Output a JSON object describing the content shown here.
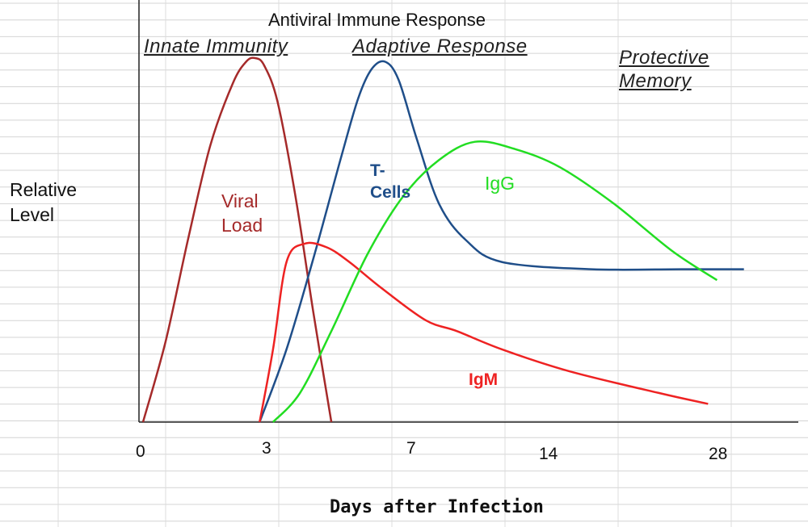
{
  "chart_data": {
    "type": "line",
    "title": "Antiviral Immune Response",
    "xlabel": "Days after Infection",
    "ylabel": "Relative Level",
    "x_ticks": [
      "0",
      "3",
      "7",
      "14",
      "28"
    ],
    "grid": true,
    "phases": [
      "Innate Immunity",
      "Adaptive Response",
      "Protective Memory"
    ],
    "series": [
      {
        "name": "Viral Load",
        "label_lines": [
          "Viral",
          "Load"
        ],
        "color": "#a52a2a",
        "points": [
          [
            0,
            0
          ],
          [
            0.5,
            0.22
          ],
          [
            1.0,
            0.5
          ],
          [
            1.5,
            0.76
          ],
          [
            2.0,
            0.93
          ],
          [
            2.3,
            0.99
          ],
          [
            2.5,
            1.0
          ],
          [
            2.7,
            0.98
          ],
          [
            3.0,
            0.88
          ],
          [
            3.4,
            0.62
          ],
          [
            3.8,
            0.3
          ],
          [
            4.2,
            0.0
          ]
        ]
      },
      {
        "name": "T-Cells",
        "label_lines": [
          "T-",
          "Cells"
        ],
        "color": "#1f4e89",
        "points": [
          [
            2.6,
            0.0
          ],
          [
            3.2,
            0.2
          ],
          [
            3.8,
            0.45
          ],
          [
            4.4,
            0.72
          ],
          [
            4.8,
            0.89
          ],
          [
            5.1,
            0.97
          ],
          [
            5.4,
            0.99
          ],
          [
            5.7,
            0.94
          ],
          [
            6.1,
            0.78
          ],
          [
            6.6,
            0.6
          ],
          [
            7.2,
            0.5
          ],
          [
            8.0,
            0.44
          ],
          [
            10.0,
            0.42
          ],
          [
            12.0,
            0.42
          ],
          [
            13.4,
            0.42
          ]
        ]
      },
      {
        "name": "IgM",
        "label_lines": [
          "IgM"
        ],
        "color": "#ee2222",
        "points": [
          [
            2.6,
            0.0
          ],
          [
            2.9,
            0.2
          ],
          [
            3.2,
            0.44
          ],
          [
            3.6,
            0.49
          ],
          [
            4.1,
            0.48
          ],
          [
            4.6,
            0.44
          ],
          [
            5.3,
            0.37
          ],
          [
            6.3,
            0.28
          ],
          [
            7.0,
            0.25
          ],
          [
            8.0,
            0.2
          ],
          [
            9.5,
            0.14
          ],
          [
            11.5,
            0.08
          ],
          [
            12.6,
            0.05
          ]
        ]
      },
      {
        "name": "IgG",
        "label_lines": [
          "IgG"
        ],
        "color": "#22dd22",
        "points": [
          [
            2.9,
            0.0
          ],
          [
            3.5,
            0.08
          ],
          [
            4.2,
            0.25
          ],
          [
            5.0,
            0.46
          ],
          [
            5.8,
            0.62
          ],
          [
            6.6,
            0.72
          ],
          [
            7.4,
            0.77
          ],
          [
            8.3,
            0.75
          ],
          [
            9.3,
            0.7
          ],
          [
            10.5,
            0.6
          ],
          [
            11.8,
            0.47
          ],
          [
            12.8,
            0.39
          ]
        ]
      }
    ]
  }
}
